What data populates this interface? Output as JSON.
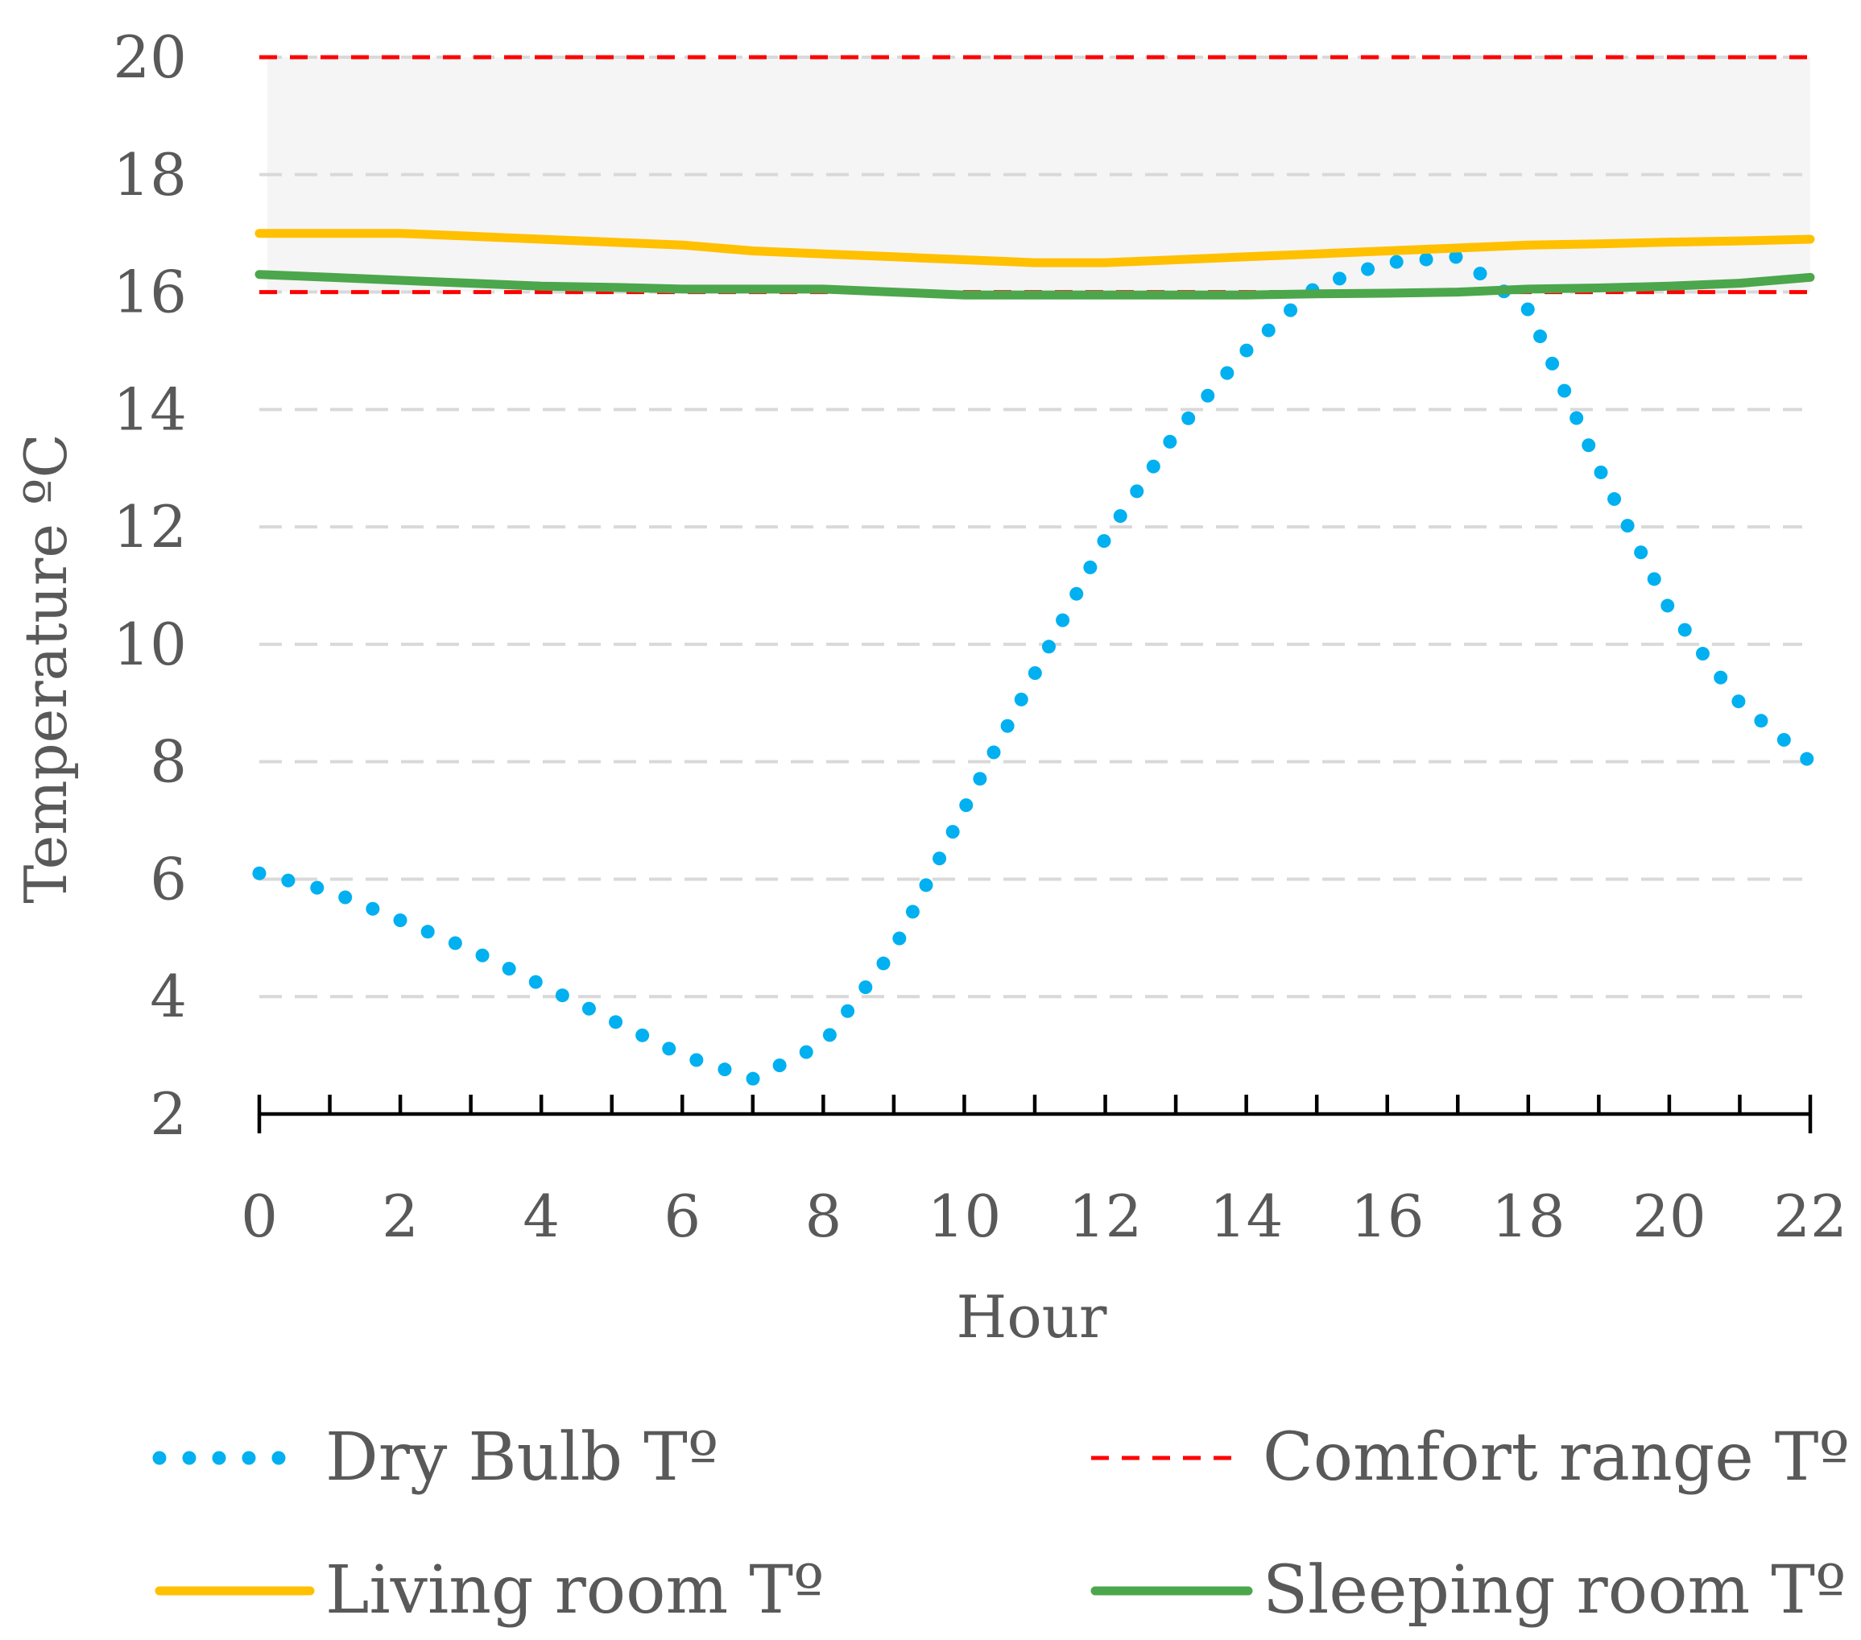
{
  "chart_data": {
    "type": "line",
    "title": "",
    "xlabel": "Hour",
    "ylabel": "Temperature ºC",
    "xlim": [
      0,
      22
    ],
    "ylim": [
      2,
      20
    ],
    "x_ticks": [
      "0",
      "2",
      "4",
      "6",
      "8",
      "10",
      "12",
      "14",
      "16",
      "18",
      "20",
      "22"
    ],
    "y_ticks": [
      "2",
      "4",
      "6",
      "8",
      "10",
      "12",
      "14",
      "16",
      "18",
      "20"
    ],
    "grid": true,
    "comfort_band": [
      16,
      20
    ],
    "x": [
      0,
      1,
      2,
      3,
      4,
      5,
      6,
      7,
      8,
      9,
      10,
      11,
      12,
      13,
      14,
      15,
      16,
      17,
      18,
      19,
      20,
      21,
      22
    ],
    "series": [
      {
        "name": "Dry Bulb Tº",
        "style": "dotted",
        "color": "#00b0f0",
        "values": [
          6.1,
          5.8,
          5.3,
          4.8,
          4.2,
          3.6,
          3.0,
          2.6,
          3.2,
          4.8,
          7.2,
          9.5,
          11.8,
          13.6,
          15.0,
          16.1,
          16.5,
          16.6,
          15.7,
          13.0,
          10.6,
          9.0,
          8.0
        ]
      },
      {
        "name": "Comfort range Tº",
        "style": "dashed",
        "color": "#ff0000",
        "values_lower": [
          16,
          16,
          16,
          16,
          16,
          16,
          16,
          16,
          16,
          16,
          16,
          16,
          16,
          16,
          16,
          16,
          16,
          16,
          16,
          16,
          16,
          16,
          16
        ],
        "values_upper": [
          20,
          20,
          20,
          20,
          20,
          20,
          20,
          20,
          20,
          20,
          20,
          20,
          20,
          20,
          20,
          20,
          20,
          20,
          20,
          20,
          20,
          20,
          20
        ]
      },
      {
        "name": "Living room Tº",
        "style": "solid",
        "color": "#ffc000",
        "values": [
          17.0,
          17.0,
          17.0,
          16.95,
          16.9,
          16.85,
          16.8,
          16.7,
          16.65,
          16.6,
          16.55,
          16.5,
          16.5,
          16.55,
          16.6,
          16.65,
          16.7,
          16.75,
          16.8,
          16.82,
          16.85,
          16.87,
          16.9
        ]
      },
      {
        "name": "Sleeping room Tº",
        "style": "solid",
        "color": "#4ca64c",
        "values": [
          16.3,
          16.25,
          16.2,
          16.15,
          16.1,
          16.08,
          16.05,
          16.05,
          16.05,
          16.0,
          15.95,
          15.95,
          15.95,
          15.95,
          15.95,
          15.97,
          15.98,
          16.0,
          16.05,
          16.07,
          16.1,
          16.15,
          16.25
        ]
      }
    ],
    "legend": {
      "position": "bottom",
      "items": [
        "Dry Bulb Tº",
        "Comfort range Tº",
        "Living room Tº",
        "Sleeping room Tº"
      ]
    }
  },
  "colors": {
    "text": "#595959",
    "grid": "#d9d9d9",
    "band_fill": "#f5f5f5",
    "axis": "#000000"
  }
}
